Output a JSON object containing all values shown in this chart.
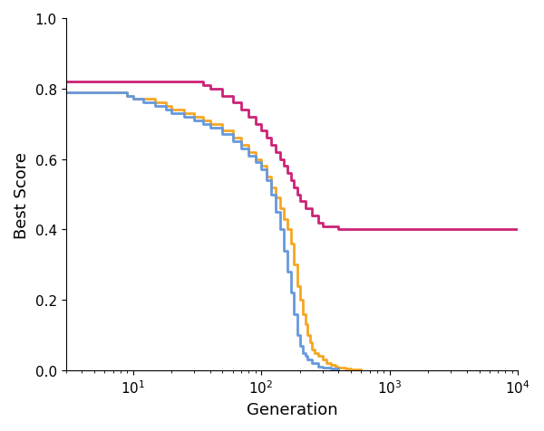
{
  "title": "",
  "xlabel": "Generation",
  "ylabel": "Best Score",
  "xlim": [
    3,
    10000
  ],
  "ylim": [
    0.0,
    1.0
  ],
  "yticks": [
    0.0,
    0.2,
    0.4,
    0.6,
    0.8,
    1.0
  ],
  "colors": {
    "pink": "#CC2277",
    "orange": "#F5A623",
    "blue": "#6699DD"
  },
  "linewidth": 2.0,
  "pink_x": [
    3,
    4,
    5,
    6,
    7,
    8,
    9,
    10,
    12,
    15,
    18,
    20,
    25,
    30,
    35,
    40,
    50,
    60,
    70,
    80,
    90,
    100,
    110,
    120,
    130,
    140,
    150,
    160,
    170,
    180,
    190,
    200,
    220,
    250,
    280,
    300,
    350,
    400,
    450,
    500,
    600,
    700,
    800,
    1000,
    2000,
    5000,
    10000
  ],
  "pink_y": [
    0.82,
    0.82,
    0.82,
    0.82,
    0.82,
    0.82,
    0.82,
    0.82,
    0.82,
    0.82,
    0.82,
    0.82,
    0.82,
    0.82,
    0.81,
    0.8,
    0.78,
    0.76,
    0.74,
    0.72,
    0.7,
    0.68,
    0.66,
    0.64,
    0.62,
    0.6,
    0.58,
    0.56,
    0.54,
    0.52,
    0.5,
    0.48,
    0.46,
    0.44,
    0.42,
    0.41,
    0.41,
    0.4,
    0.4,
    0.4,
    0.4,
    0.4,
    0.4,
    0.4,
    0.4,
    0.4,
    0.4
  ],
  "orange_x": [
    3,
    4,
    5,
    6,
    7,
    8,
    9,
    10,
    12,
    15,
    18,
    20,
    25,
    30,
    35,
    40,
    50,
    60,
    70,
    80,
    90,
    100,
    110,
    120,
    130,
    140,
    150,
    160,
    170,
    180,
    190,
    200,
    210,
    220,
    230,
    240,
    250,
    260,
    280,
    300,
    320,
    350,
    380,
    400,
    450,
    500,
    600
  ],
  "orange_y": [
    0.79,
    0.79,
    0.79,
    0.79,
    0.79,
    0.79,
    0.78,
    0.77,
    0.77,
    0.76,
    0.75,
    0.74,
    0.73,
    0.72,
    0.71,
    0.7,
    0.68,
    0.66,
    0.64,
    0.62,
    0.6,
    0.58,
    0.55,
    0.52,
    0.49,
    0.46,
    0.43,
    0.4,
    0.36,
    0.3,
    0.24,
    0.2,
    0.16,
    0.13,
    0.1,
    0.08,
    0.06,
    0.05,
    0.04,
    0.03,
    0.02,
    0.015,
    0.01,
    0.008,
    0.005,
    0.003,
    0.002
  ],
  "blue_x": [
    3,
    4,
    5,
    6,
    7,
    8,
    9,
    10,
    12,
    15,
    18,
    20,
    25,
    30,
    35,
    40,
    50,
    60,
    70,
    80,
    90,
    100,
    110,
    120,
    130,
    140,
    150,
    160,
    170,
    180,
    190,
    200,
    210,
    220,
    230,
    250,
    280,
    300,
    350,
    400
  ],
  "blue_y": [
    0.79,
    0.79,
    0.79,
    0.79,
    0.79,
    0.79,
    0.78,
    0.77,
    0.76,
    0.75,
    0.74,
    0.73,
    0.72,
    0.71,
    0.7,
    0.69,
    0.67,
    0.65,
    0.63,
    0.61,
    0.59,
    0.57,
    0.54,
    0.5,
    0.45,
    0.4,
    0.34,
    0.28,
    0.22,
    0.16,
    0.1,
    0.07,
    0.05,
    0.04,
    0.03,
    0.02,
    0.01,
    0.007,
    0.004,
    0.002
  ]
}
